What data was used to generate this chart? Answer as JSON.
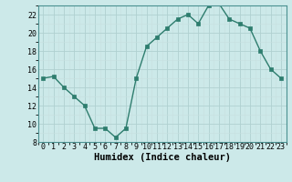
{
  "x": [
    0,
    1,
    2,
    3,
    4,
    5,
    6,
    7,
    8,
    9,
    10,
    11,
    12,
    13,
    14,
    15,
    16,
    17,
    18,
    19,
    20,
    21,
    22,
    23
  ],
  "y": [
    15,
    15.2,
    14,
    13,
    12,
    9.5,
    9.5,
    8.5,
    9.5,
    15,
    18.5,
    19.5,
    20.5,
    21.5,
    22,
    21,
    23,
    23.2,
    21.5,
    21,
    20.5,
    18,
    16,
    15
  ],
  "line_color": "#2e7d6e",
  "marker_color": "#2e7d6e",
  "bg_color": "#cce9e9",
  "grid_major_color": "#b0d0d0",
  "grid_minor_color": "#c8e0e0",
  "xlabel": "Humidex (Indice chaleur)",
  "ylim": [
    8,
    23
  ],
  "xlim": [
    -0.5,
    23.5
  ],
  "yticks": [
    8,
    10,
    12,
    14,
    16,
    18,
    20,
    22
  ],
  "xtick_labels": [
    "0",
    "1",
    "2",
    "3",
    "4",
    "5",
    "6",
    "7",
    "8",
    "9",
    "10",
    "11",
    "12",
    "13",
    "14",
    "15",
    "16",
    "17",
    "18",
    "19",
    "20",
    "21",
    "22",
    "23"
  ],
  "xlabel_fontsize": 7.5,
  "tick_fontsize": 6,
  "marker_size": 2.5,
  "line_width": 1.0
}
